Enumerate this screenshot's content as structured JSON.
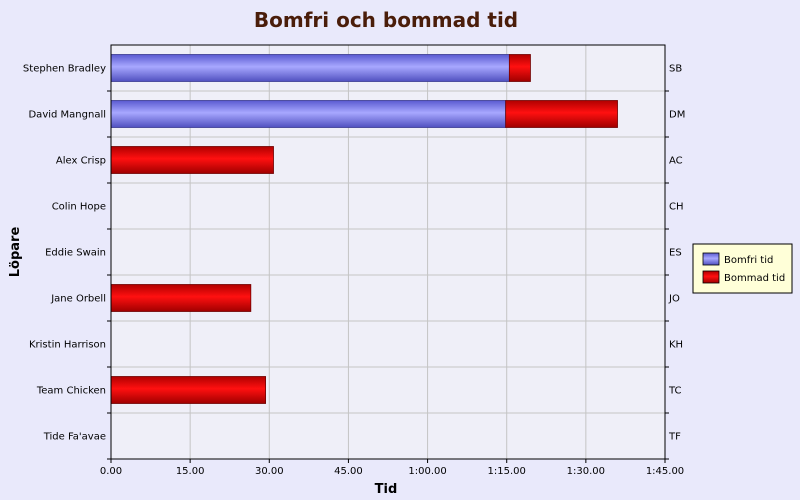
{
  "chart_data": {
    "type": "bar",
    "orientation": "horizontal",
    "stacked": true,
    "title": "Bomfri och bommad tid",
    "xlabel": "Tid",
    "ylabel": "Löpare",
    "xlim": [
      0,
      105
    ],
    "x_ticks": [
      0,
      15,
      30,
      45,
      60,
      75,
      90,
      105
    ],
    "x_tick_labels": [
      "0.00",
      "15.00",
      "30.00",
      "45.00",
      "1:00.00",
      "1:15.00",
      "1:30.00",
      "1:45.00"
    ],
    "categories": [
      "Stephen Bradley",
      "David Mangnall",
      "Alex Crisp",
      "Colin Hope",
      "Eddie Swain",
      "Jane Orbell",
      "Kristin Harrison",
      "Team Chicken",
      "Tide Fa'avae"
    ],
    "category_codes": [
      "SB",
      "DM",
      "AC",
      "CH",
      "ES",
      "JO",
      "KH",
      "TC",
      "TF"
    ],
    "series": [
      {
        "name": "Bomfri tid",
        "color": "#8888ee",
        "values": [
          75.5,
          74.8,
          0,
          0,
          0,
          0,
          0,
          0,
          0
        ]
      },
      {
        "name": "Bommad tid",
        "color": "#ee0000",
        "values": [
          4,
          21.2,
          30.8,
          0,
          0,
          26.5,
          0,
          29.3,
          0
        ]
      }
    ],
    "grid": true,
    "legend_position": "right"
  }
}
